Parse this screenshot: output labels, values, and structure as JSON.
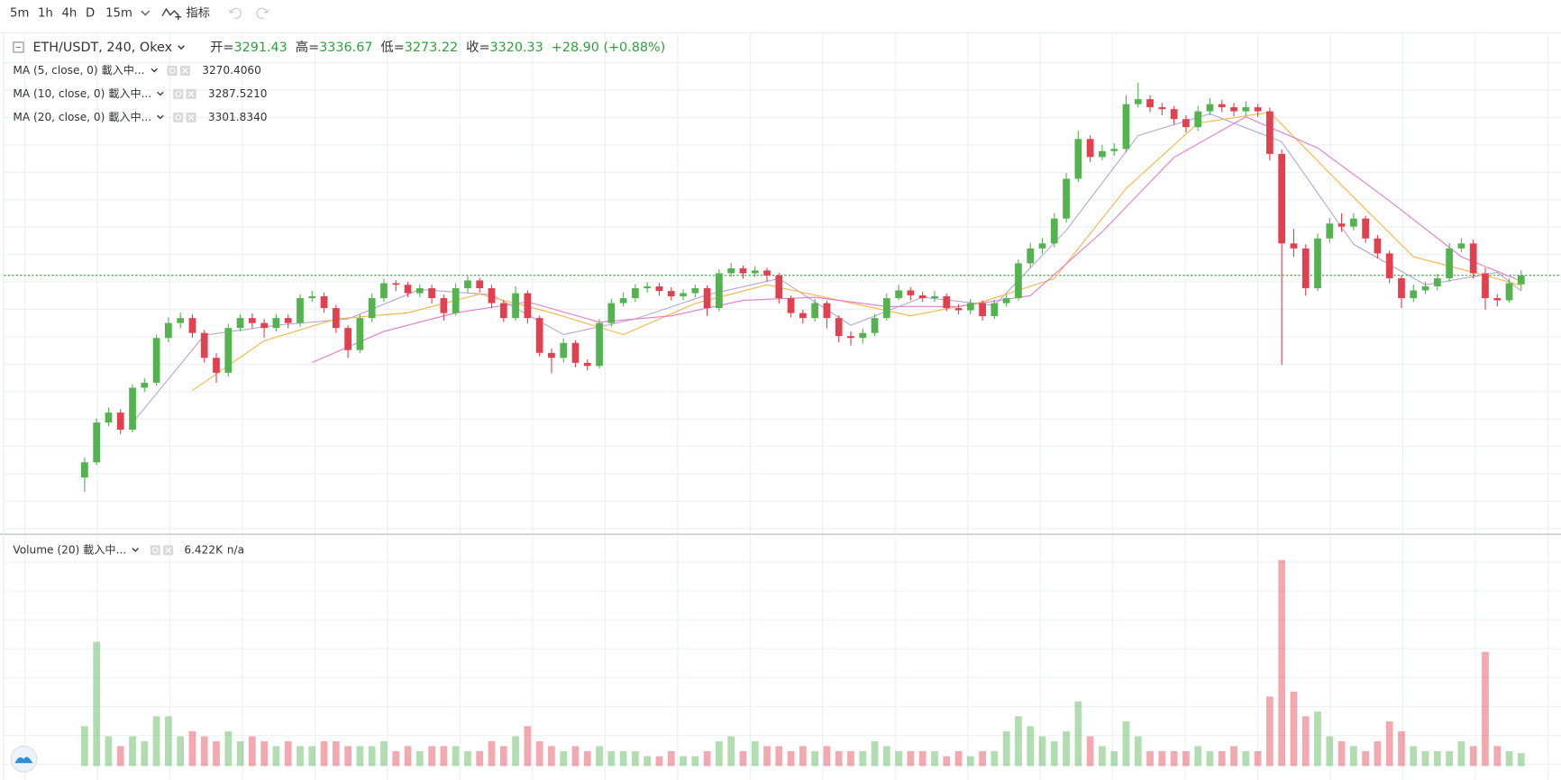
{
  "toolbar": {
    "intervals": [
      "5m",
      "1h",
      "4h",
      "D",
      "15m"
    ],
    "active": 2,
    "indicators": "指标"
  },
  "chart_data": {
    "type": "candlestick",
    "title": "ETH/USDT, 240, Okex",
    "ohlc_labels": [
      "开=",
      "高=",
      "低=",
      "收="
    ],
    "change_label": "+28.90 (+0.88%)",
    "up_color": "#53b34f",
    "down_color": "#e2404f",
    "ylim": [
      2510,
      4094
    ],
    "volume_ylim": [
      0,
      113600
    ],
    "last_price_line": true,
    "open": [
      2670,
      2719,
      2847,
      2879,
      2824,
      2959,
      2975,
      3119,
      3167,
      3183,
      3135,
      3055,
      3007,
      3151,
      3183,
      3167,
      3151,
      3183,
      3167,
      3247,
      3253,
      3215,
      3151,
      3080,
      3183,
      3247,
      3295,
      3290,
      3263,
      3279,
      3247,
      3199,
      3279,
      3304,
      3279,
      3231,
      3183,
      3263,
      3183,
      3071,
      3055,
      3103,
      3039,
      3029,
      3167,
      3231,
      3247,
      3279,
      3285,
      3270,
      3253,
      3263,
      3279,
      3215,
      3327,
      3343,
      3327,
      3336,
      3320,
      3247,
      3199,
      3183,
      3231,
      3183,
      3125,
      3119,
      3135,
      3183,
      3247,
      3272,
      3256,
      3247,
      3253,
      3215,
      3208,
      3231,
      3189,
      3231,
      3247,
      3359,
      3407,
      3423,
      3503,
      3631,
      3759,
      3701,
      3720,
      3727,
      3871,
      3887,
      3861,
      3855,
      3823,
      3797,
      3848,
      3871,
      3861,
      3848,
      3861,
      3848,
      3711,
      3423,
      3407,
      3279,
      3439,
      3487,
      3477,
      3503,
      3439,
      3391,
      3311,
      3247,
      3272,
      3285,
      3311,
      3407,
      3423,
      3327,
      3247,
      3240,
      3291.43
    ],
    "high": [
      2735,
      2860,
      2895,
      2890,
      2970,
      2990,
      3130,
      3185,
      3200,
      3195,
      3145,
      3070,
      3165,
      3195,
      3198,
      3180,
      3195,
      3195,
      3260,
      3270,
      3265,
      3225,
      3160,
      3195,
      3262,
      3310,
      3305,
      3300,
      3292,
      3290,
      3258,
      3295,
      3318,
      3312,
      3290,
      3240,
      3285,
      3272,
      3190,
      3085,
      3118,
      3112,
      3050,
      3180,
      3245,
      3265,
      3292,
      3298,
      3296,
      3282,
      3275,
      3290,
      3288,
      3340,
      3360,
      3352,
      3350,
      3345,
      3328,
      3255,
      3210,
      3245,
      3240,
      3192,
      3140,
      3150,
      3196,
      3262,
      3290,
      3282,
      3268,
      3270,
      3262,
      3228,
      3245,
      3240,
      3242,
      3260,
      3372,
      3425,
      3440,
      3520,
      3650,
      3785,
      3770,
      3740,
      3745,
      3900,
      3940,
      3900,
      3875,
      3865,
      3835,
      3865,
      3890,
      3885,
      3875,
      3880,
      3872,
      3860,
      3725,
      3470,
      3420,
      3455,
      3505,
      3520,
      3520,
      3512,
      3450,
      3400,
      3320,
      3290,
      3300,
      3325,
      3425,
      3440,
      3435,
      3345,
      3260,
      3310,
      3336.67
    ],
    "low": [
      2623,
      2710,
      2835,
      2810,
      2815,
      2945,
      2965,
      3105,
      3150,
      3120,
      3040,
      2975,
      2995,
      3140,
      3150,
      3120,
      3140,
      3150,
      3155,
      3235,
      3200,
      3135,
      3055,
      3070,
      3170,
      3235,
      3270,
      3250,
      3250,
      3230,
      3175,
      3190,
      3265,
      3265,
      3215,
      3170,
      3175,
      3165,
      3060,
      3005,
      3040,
      3025,
      3015,
      3020,
      3155,
      3220,
      3235,
      3265,
      3255,
      3240,
      3240,
      3250,
      3190,
      3205,
      3315,
      3310,
      3315,
      3300,
      3230,
      3185,
      3165,
      3172,
      3150,
      3105,
      3095,
      3100,
      3125,
      3175,
      3240,
      3240,
      3235,
      3235,
      3205,
      3195,
      3195,
      3175,
      3180,
      3220,
      3240,
      3345,
      3390,
      3410,
      3490,
      3620,
      3685,
      3690,
      3705,
      3715,
      3860,
      3845,
      3835,
      3805,
      3780,
      3785,
      3835,
      3845,
      3832,
      3835,
      3830,
      3690,
      3032,
      3380,
      3255,
      3270,
      3425,
      3460,
      3465,
      3425,
      3375,
      3295,
      3215,
      3235,
      3260,
      3272,
      3300,
      3395,
      3310,
      3210,
      3220,
      3232,
      3273.22
    ],
    "close": [
      2719,
      2847,
      2879,
      2824,
      2959,
      2975,
      3119,
      3167,
      3183,
      3135,
      3055,
      3007,
      3151,
      3183,
      3167,
      3151,
      3183,
      3167,
      3247,
      3253,
      3215,
      3151,
      3080,
      3183,
      3247,
      3295,
      3290,
      3263,
      3279,
      3247,
      3199,
      3279,
      3304,
      3279,
      3231,
      3183,
      3263,
      3183,
      3071,
      3055,
      3103,
      3039,
      3029,
      3167,
      3231,
      3247,
      3279,
      3285,
      3270,
      3253,
      3263,
      3279,
      3215,
      3327,
      3343,
      3327,
      3336,
      3320,
      3247,
      3199,
      3183,
      3231,
      3183,
      3125,
      3119,
      3135,
      3183,
      3247,
      3272,
      3256,
      3247,
      3253,
      3215,
      3208,
      3231,
      3189,
      3231,
      3247,
      3359,
      3407,
      3423,
      3503,
      3631,
      3759,
      3701,
      3720,
      3727,
      3871,
      3887,
      3861,
      3855,
      3823,
      3797,
      3848,
      3871,
      3861,
      3848,
      3861,
      3848,
      3711,
      3423,
      3407,
      3279,
      3439,
      3487,
      3477,
      3503,
      3439,
      3391,
      3311,
      3247,
      3272,
      3285,
      3311,
      3407,
      3423,
      3327,
      3247,
      3240,
      3295,
      3320.33
    ],
    "volume": [
      19800,
      61700,
      14800,
      9900,
      14800,
      12300,
      24700,
      24700,
      14800,
      17300,
      14800,
      12300,
      17300,
      12300,
      14800,
      12300,
      9900,
      12300,
      9900,
      9900,
      12300,
      12300,
      9900,
      9900,
      9900,
      12300,
      7400,
      9900,
      7400,
      9900,
      9900,
      9900,
      7400,
      7400,
      12300,
      9900,
      14800,
      19800,
      12300,
      9900,
      7400,
      9900,
      7400,
      9900,
      7400,
      7400,
      7400,
      4900,
      4900,
      7400,
      4900,
      4900,
      7400,
      12300,
      14800,
      7400,
      12300,
      9900,
      9900,
      7400,
      9900,
      7400,
      9900,
      7400,
      7400,
      7400,
      12300,
      9900,
      7400,
      7400,
      7400,
      7400,
      4900,
      7400,
      4900,
      7400,
      7400,
      17300,
      24700,
      19800,
      14800,
      12300,
      17300,
      32100,
      14800,
      9900,
      7400,
      22200,
      14800,
      7400,
      7400,
      7400,
      7400,
      9900,
      7400,
      7400,
      9900,
      7400,
      7400,
      34500,
      102300,
      37000,
      24700,
      27100,
      14800,
      12300,
      9900,
      7400,
      12300,
      22200,
      17300,
      9900,
      7400,
      7400,
      7400,
      12300,
      9900,
      56700,
      9900,
      7400,
      6422
    ],
    "ma": [
      {
        "name": "MA (5, close, 0) 載入中...",
        "value_label": "3270.4060",
        "color": "#b3a6d6",
        "label_color": "#999999",
        "x": [
          4,
          10,
          16,
          22,
          28,
          34,
          40,
          46,
          52,
          58,
          64,
          70,
          76,
          82,
          88,
          94,
          100,
          106,
          112,
          118,
          120
        ],
        "values": [
          2846,
          3128,
          3160,
          3180,
          3275,
          3258,
          3130,
          3180,
          3258,
          3310,
          3160,
          3250,
          3224,
          3465,
          3770,
          3840,
          3750,
          3420,
          3290,
          3330,
          3270.406
        ]
      },
      {
        "name": "MA (10, close, 0) 載入中...",
        "value_label": "3287.5210",
        "color": "#f7b441",
        "label_color": "#f5a623",
        "x": [
          9,
          15,
          21,
          27,
          33,
          39,
          45,
          51,
          57,
          63,
          69,
          75,
          81,
          87,
          93,
          99,
          105,
          111,
          117,
          120
        ],
        "values": [
          2950,
          3110,
          3180,
          3200,
          3260,
          3200,
          3130,
          3230,
          3290,
          3240,
          3190,
          3235,
          3310,
          3600,
          3810,
          3845,
          3610,
          3380,
          3320,
          3287.521
        ]
      },
      {
        "name": "MA (20, close, 0) 載入中...",
        "value_label": "3301.8340",
        "color": "#e879c9",
        "label_color": "#e040c0",
        "x": [
          19,
          25,
          31,
          37,
          43,
          49,
          55,
          61,
          67,
          73,
          79,
          85,
          91,
          97,
          103,
          109,
          115,
          120
        ],
        "values": [
          3040,
          3140,
          3200,
          3235,
          3170,
          3190,
          3240,
          3250,
          3220,
          3220,
          3255,
          3460,
          3700,
          3830,
          3730,
          3560,
          3380,
          3301.834
        ]
      }
    ],
    "volume_legend": {
      "name": "Volume (20) 載入中...",
      "value_label": "6.422K",
      "extra": "n/a"
    }
  }
}
